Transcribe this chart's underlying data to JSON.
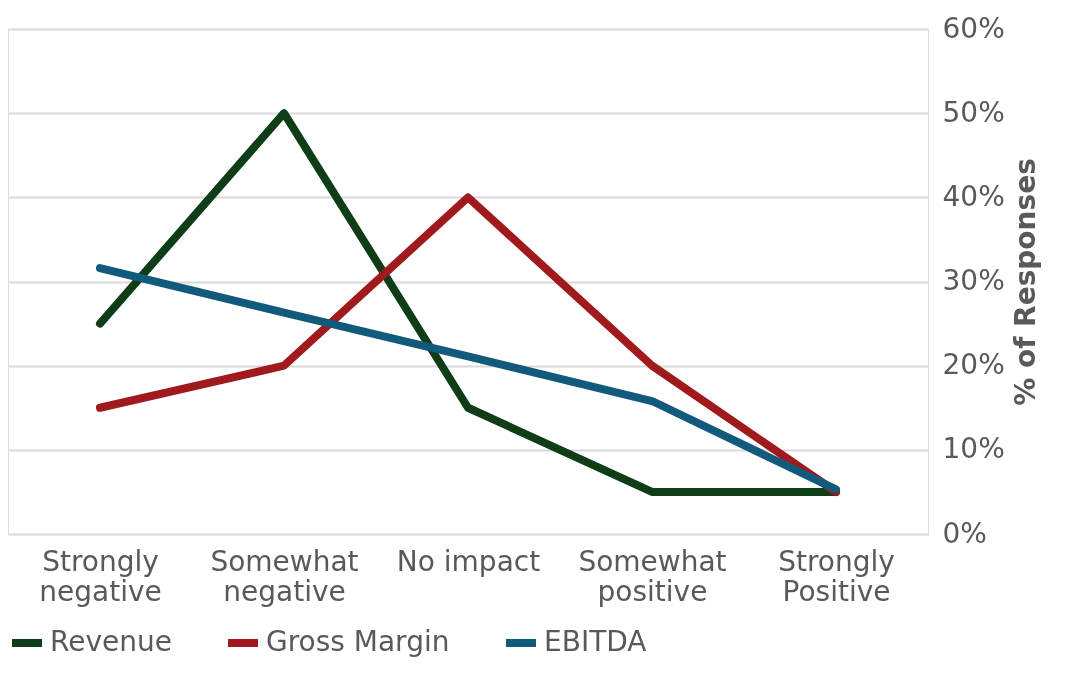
{
  "chart_data": {
    "type": "line",
    "categories": [
      "Strongly negative",
      "Somewhat negative",
      "No impact",
      "Somewhat positive",
      "Strongly Positive"
    ],
    "series": [
      {
        "name": "Revenue",
        "color": "#0f3d17",
        "values": [
          25,
          50,
          15,
          5,
          5
        ]
      },
      {
        "name": "Gross Margin",
        "color": "#a0191c",
        "values": [
          15,
          20,
          40,
          20,
          5
        ]
      },
      {
        "name": "EBITDA",
        "color": "#125a7c",
        "values": [
          31.6,
          26.3,
          21.1,
          15.8,
          5.3
        ]
      }
    ],
    "ylabel": "% of Responses",
    "ylim": [
      0,
      60
    ],
    "yticks": [
      {
        "value": 0,
        "label": "0%"
      },
      {
        "value": 10,
        "label": "10%"
      },
      {
        "value": 20,
        "label": "20%"
      },
      {
        "value": 30,
        "label": "30%"
      },
      {
        "value": 40,
        "label": "40%"
      },
      {
        "value": 50,
        "label": "50%"
      },
      {
        "value": 60,
        "label": "60%"
      }
    ],
    "grid": "y",
    "legend": "bottom",
    "line_style": "solid"
  }
}
